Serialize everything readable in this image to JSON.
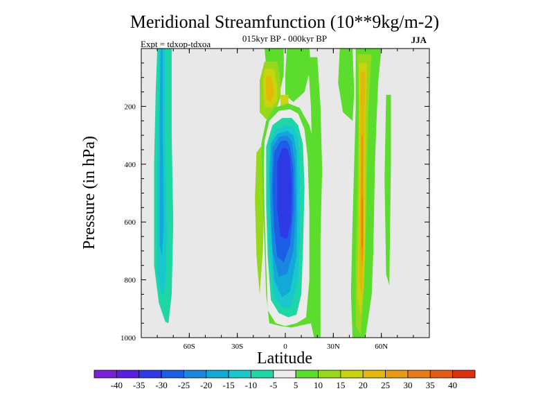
{
  "chart_data": {
    "type": "heatmap",
    "title": "Meridional Streamfunction (10**9kg/m-2)",
    "subtitle": "015kyr BP - 000kyr BP",
    "left_note": "Expt = tdxop-tdxoa",
    "season": "JJA",
    "xlabel": "Latitude",
    "ylabel": "Pressure (in hPa)",
    "xlim": [
      -90,
      90
    ],
    "ylim": [
      0,
      1000
    ],
    "y_reversed": true,
    "x_ticks": [
      {
        "value": -60,
        "label": "60S"
      },
      {
        "value": -30,
        "label": "30S"
      },
      {
        "value": 0,
        "label": "0"
      },
      {
        "value": 30,
        "label": "30N"
      },
      {
        "value": 60,
        "label": "60N"
      }
    ],
    "y_ticks": [
      {
        "value": 200,
        "label": "200"
      },
      {
        "value": 400,
        "label": "400"
      },
      {
        "value": 600,
        "label": "600"
      },
      {
        "value": 800,
        "label": "800"
      },
      {
        "value": 1000,
        "label": "1000"
      }
    ],
    "background_color": "#e8e8e8",
    "colorbar": {
      "boundaries": [
        -40,
        -35,
        -30,
        -25,
        -20,
        -15,
        -10,
        -5,
        5,
        10,
        15,
        20,
        25,
        30,
        35,
        40
      ],
      "colors": [
        "#7b1fd8",
        "#5a1ee0",
        "#2d3ae6",
        "#1c5ee6",
        "#1a86e0",
        "#12a8d8",
        "#18c8cc",
        "#1ed6a6",
        "#ebebeb",
        "#5cdc2c",
        "#98d81a",
        "#c8d40e",
        "#e4b80a",
        "#e89a10",
        "#e87a18",
        "#e65a18",
        "#de3010"
      ]
    },
    "regions": [
      {
        "level": -10,
        "points": [
          [
            -80,
            0
          ],
          [
            -71,
            0
          ],
          [
            -71,
            300
          ],
          [
            -70,
            600
          ],
          [
            -71,
            850
          ],
          [
            -73,
            950
          ],
          [
            -75,
            945
          ],
          [
            -79,
            880
          ],
          [
            -82,
            750
          ],
          [
            -82,
            400
          ],
          [
            -81,
            150
          ]
        ]
      },
      {
        "level": -15,
        "points": [
          [
            -79,
            0
          ],
          [
            -75,
            0
          ],
          [
            -75,
            350
          ],
          [
            -74,
            650
          ],
          [
            -75,
            820
          ],
          [
            -77,
            860
          ],
          [
            -80,
            780
          ],
          [
            -80,
            400
          ],
          [
            -79,
            150
          ]
        ]
      },
      {
        "level": -20,
        "points": [
          [
            -78,
            0
          ],
          [
            -76.5,
            0
          ],
          [
            -76.5,
            300
          ],
          [
            -76,
            600
          ],
          [
            -77,
            720
          ],
          [
            -78.5,
            680
          ],
          [
            -78.5,
            300
          ]
        ]
      },
      {
        "level": 10,
        "points": [
          [
            -14,
            330
          ],
          [
            -13,
            480
          ],
          [
            -14,
            700
          ],
          [
            -16,
            850
          ],
          [
            -18,
            720
          ],
          [
            -19,
            520
          ],
          [
            -18,
            360
          ]
        ]
      },
      {
        "level": 5,
        "points": [
          [
            -13,
            0
          ],
          [
            -1,
            0
          ],
          [
            -1,
            90
          ],
          [
            -5,
            190
          ],
          [
            -10,
            190
          ],
          [
            -13,
            150
          ],
          [
            -12,
            60
          ]
        ]
      },
      {
        "level": 5,
        "points": [
          [
            1,
            0
          ],
          [
            15,
            0
          ],
          [
            16,
            60
          ],
          [
            12,
            150
          ],
          [
            5,
            185
          ],
          [
            0,
            160
          ],
          [
            0,
            90
          ]
        ]
      },
      {
        "level": 10,
        "points": [
          [
            -13,
            45
          ],
          [
            -5,
            45
          ],
          [
            -3,
            110
          ],
          [
            -3,
            170
          ],
          [
            -7,
            230
          ],
          [
            -12,
            245
          ],
          [
            -16,
            220
          ],
          [
            -16,
            110
          ]
        ]
      },
      {
        "level": 15,
        "points": [
          [
            -13,
            70
          ],
          [
            -7,
            70
          ],
          [
            -5,
            130
          ],
          [
            -5,
            180
          ],
          [
            -9,
            205
          ],
          [
            -13,
            200
          ],
          [
            -14,
            120
          ]
        ]
      },
      {
        "level": 20,
        "points": [
          [
            -12,
            95
          ],
          [
            -9,
            95
          ],
          [
            -7,
            150
          ],
          [
            -9,
            185
          ],
          [
            -12,
            175
          ]
        ]
      },
      {
        "level": 15,
        "points": [
          [
            -3,
            160
          ],
          [
            2,
            160
          ],
          [
            2,
            210
          ],
          [
            -3,
            210
          ]
        ]
      },
      {
        "level": 5,
        "points": [
          [
            -15,
            330
          ],
          [
            -12,
            250
          ],
          [
            -7,
            205
          ],
          [
            2,
            190
          ],
          [
            9,
            205
          ],
          [
            15,
            265
          ],
          [
            21,
            390
          ],
          [
            22,
            600
          ],
          [
            22,
            800
          ],
          [
            22,
            1000
          ],
          [
            18,
            1000
          ],
          [
            16,
            950
          ],
          [
            8,
            960
          ],
          [
            4,
            965
          ],
          [
            -3,
            960
          ],
          [
            -10,
            950
          ],
          [
            -12,
            850
          ],
          [
            -13,
            680
          ],
          [
            -14,
            520
          ]
        ]
      },
      {
        "level": -5,
        "points": [
          [
            -13,
            320
          ],
          [
            -10,
            250
          ],
          [
            -4,
            215
          ],
          [
            3,
            210
          ],
          [
            8,
            225
          ],
          [
            12,
            280
          ],
          [
            14,
            380
          ],
          [
            15,
            560
          ],
          [
            15,
            800
          ],
          [
            13,
            930
          ],
          [
            7,
            950
          ],
          [
            0,
            960
          ],
          [
            -6,
            950
          ],
          [
            -11,
            905
          ],
          [
            -12,
            740
          ],
          [
            -13,
            560
          ],
          [
            -13.5,
            420
          ]
        ]
      },
      {
        "level": -10,
        "points": [
          [
            -12,
            340
          ],
          [
            -8,
            265
          ],
          [
            -2,
            240
          ],
          [
            4,
            240
          ],
          [
            8,
            265
          ],
          [
            11,
            330
          ],
          [
            12,
            480
          ],
          [
            11,
            700
          ],
          [
            10,
            850
          ],
          [
            7,
            920
          ],
          [
            2,
            930
          ],
          [
            -4,
            915
          ],
          [
            -9,
            870
          ],
          [
            -11,
            720
          ],
          [
            -12,
            540
          ]
        ]
      },
      {
        "level": -15,
        "points": [
          [
            -10,
            330
          ],
          [
            -6,
            280
          ],
          [
            0,
            265
          ],
          [
            5,
            270
          ],
          [
            8,
            305
          ],
          [
            9,
            440
          ],
          [
            9,
            650
          ],
          [
            8,
            800
          ],
          [
            4,
            890
          ],
          [
            -1,
            900
          ],
          [
            -7,
            860
          ],
          [
            -10,
            700
          ],
          [
            -11,
            520
          ]
        ]
      },
      {
        "level": -20,
        "points": [
          [
            -9,
            330
          ],
          [
            -5,
            295
          ],
          [
            1,
            285
          ],
          [
            5,
            300
          ],
          [
            7,
            360
          ],
          [
            7.5,
            560
          ],
          [
            7,
            720
          ],
          [
            3,
            840
          ],
          [
            -2,
            860
          ],
          [
            -7,
            800
          ],
          [
            -9,
            630
          ],
          [
            -10,
            440
          ]
        ]
      },
      {
        "level": -25,
        "points": [
          [
            -8,
            345
          ],
          [
            -4,
            305
          ],
          [
            1,
            300
          ],
          [
            4,
            320
          ],
          [
            6,
            400
          ],
          [
            6.5,
            560
          ],
          [
            5,
            700
          ],
          [
            1,
            780
          ],
          [
            -4,
            790
          ],
          [
            -8,
            700
          ],
          [
            -9,
            520
          ]
        ]
      },
      {
        "level": -30,
        "points": [
          [
            -7,
            360
          ],
          [
            -3,
            320
          ],
          [
            1,
            318
          ],
          [
            3,
            340
          ],
          [
            5,
            420
          ],
          [
            5,
            560
          ],
          [
            3,
            680
          ],
          [
            -1,
            740
          ],
          [
            -5,
            720
          ],
          [
            -7,
            620
          ],
          [
            -8,
            480
          ]
        ]
      },
      {
        "level": -35,
        "points": [
          [
            -5,
            390
          ],
          [
            -2,
            345
          ],
          [
            1,
            345
          ],
          [
            3,
            380
          ],
          [
            4,
            480
          ],
          [
            3.5,
            600
          ],
          [
            1,
            660
          ],
          [
            -3,
            650
          ],
          [
            -5,
            560
          ]
        ]
      },
      {
        "level": 5,
        "points": [
          [
            14,
            30
          ],
          [
            20,
            30
          ],
          [
            22,
            200
          ],
          [
            23,
            420
          ],
          [
            22,
            650
          ],
          [
            20,
            650
          ],
          [
            17,
            420
          ],
          [
            16,
            200
          ]
        ]
      },
      {
        "level": 5,
        "points": [
          [
            34,
            0
          ],
          [
            42,
            0
          ],
          [
            43,
            150
          ],
          [
            42,
            250
          ],
          [
            36,
            220
          ],
          [
            33,
            120
          ]
        ]
      },
      {
        "level": 5,
        "points": [
          [
            44,
            0
          ],
          [
            60,
            0
          ],
          [
            58,
            120
          ],
          [
            57,
            250
          ],
          [
            56,
            400
          ],
          [
            55,
            700
          ],
          [
            54,
            850
          ],
          [
            50,
            1000
          ],
          [
            42,
            1000
          ],
          [
            41,
            850
          ],
          [
            42,
            600
          ],
          [
            43,
            400
          ],
          [
            44,
            200
          ]
        ]
      },
      {
        "level": 10,
        "points": [
          [
            45,
            20
          ],
          [
            54,
            20
          ],
          [
            52,
            200
          ],
          [
            51,
            420
          ],
          [
            50,
            700
          ],
          [
            49,
            850
          ],
          [
            47,
            990
          ],
          [
            44,
            960
          ],
          [
            44,
            750
          ],
          [
            45,
            500
          ],
          [
            46,
            200
          ]
        ]
      },
      {
        "level": 15,
        "points": [
          [
            46,
            50
          ],
          [
            51,
            50
          ],
          [
            50,
            300
          ],
          [
            50,
            620
          ],
          [
            49,
            820
          ],
          [
            47,
            920
          ],
          [
            45,
            860
          ],
          [
            46,
            500
          ]
        ]
      },
      {
        "level": 20,
        "points": [
          [
            47,
            80
          ],
          [
            50,
            80
          ],
          [
            49,
            400
          ],
          [
            49,
            700
          ],
          [
            48,
            860
          ],
          [
            46,
            800
          ],
          [
            47,
            450
          ]
        ]
      },
      {
        "level": 25,
        "points": [
          [
            47.5,
            300
          ],
          [
            48.7,
            300
          ],
          [
            48.7,
            700
          ],
          [
            48,
            760
          ],
          [
            47.2,
            700
          ],
          [
            47.3,
            450
          ]
        ]
      },
      {
        "level": 30,
        "points": [
          [
            47.7,
            520
          ],
          [
            48.5,
            520
          ],
          [
            48.4,
            680
          ],
          [
            47.8,
            690
          ]
        ]
      },
      {
        "level": 5,
        "points": [
          [
            63,
            160
          ],
          [
            66,
            160
          ],
          [
            66,
            400
          ],
          [
            65,
            820
          ],
          [
            63,
            780
          ],
          [
            62,
            450
          ]
        ]
      }
    ]
  }
}
